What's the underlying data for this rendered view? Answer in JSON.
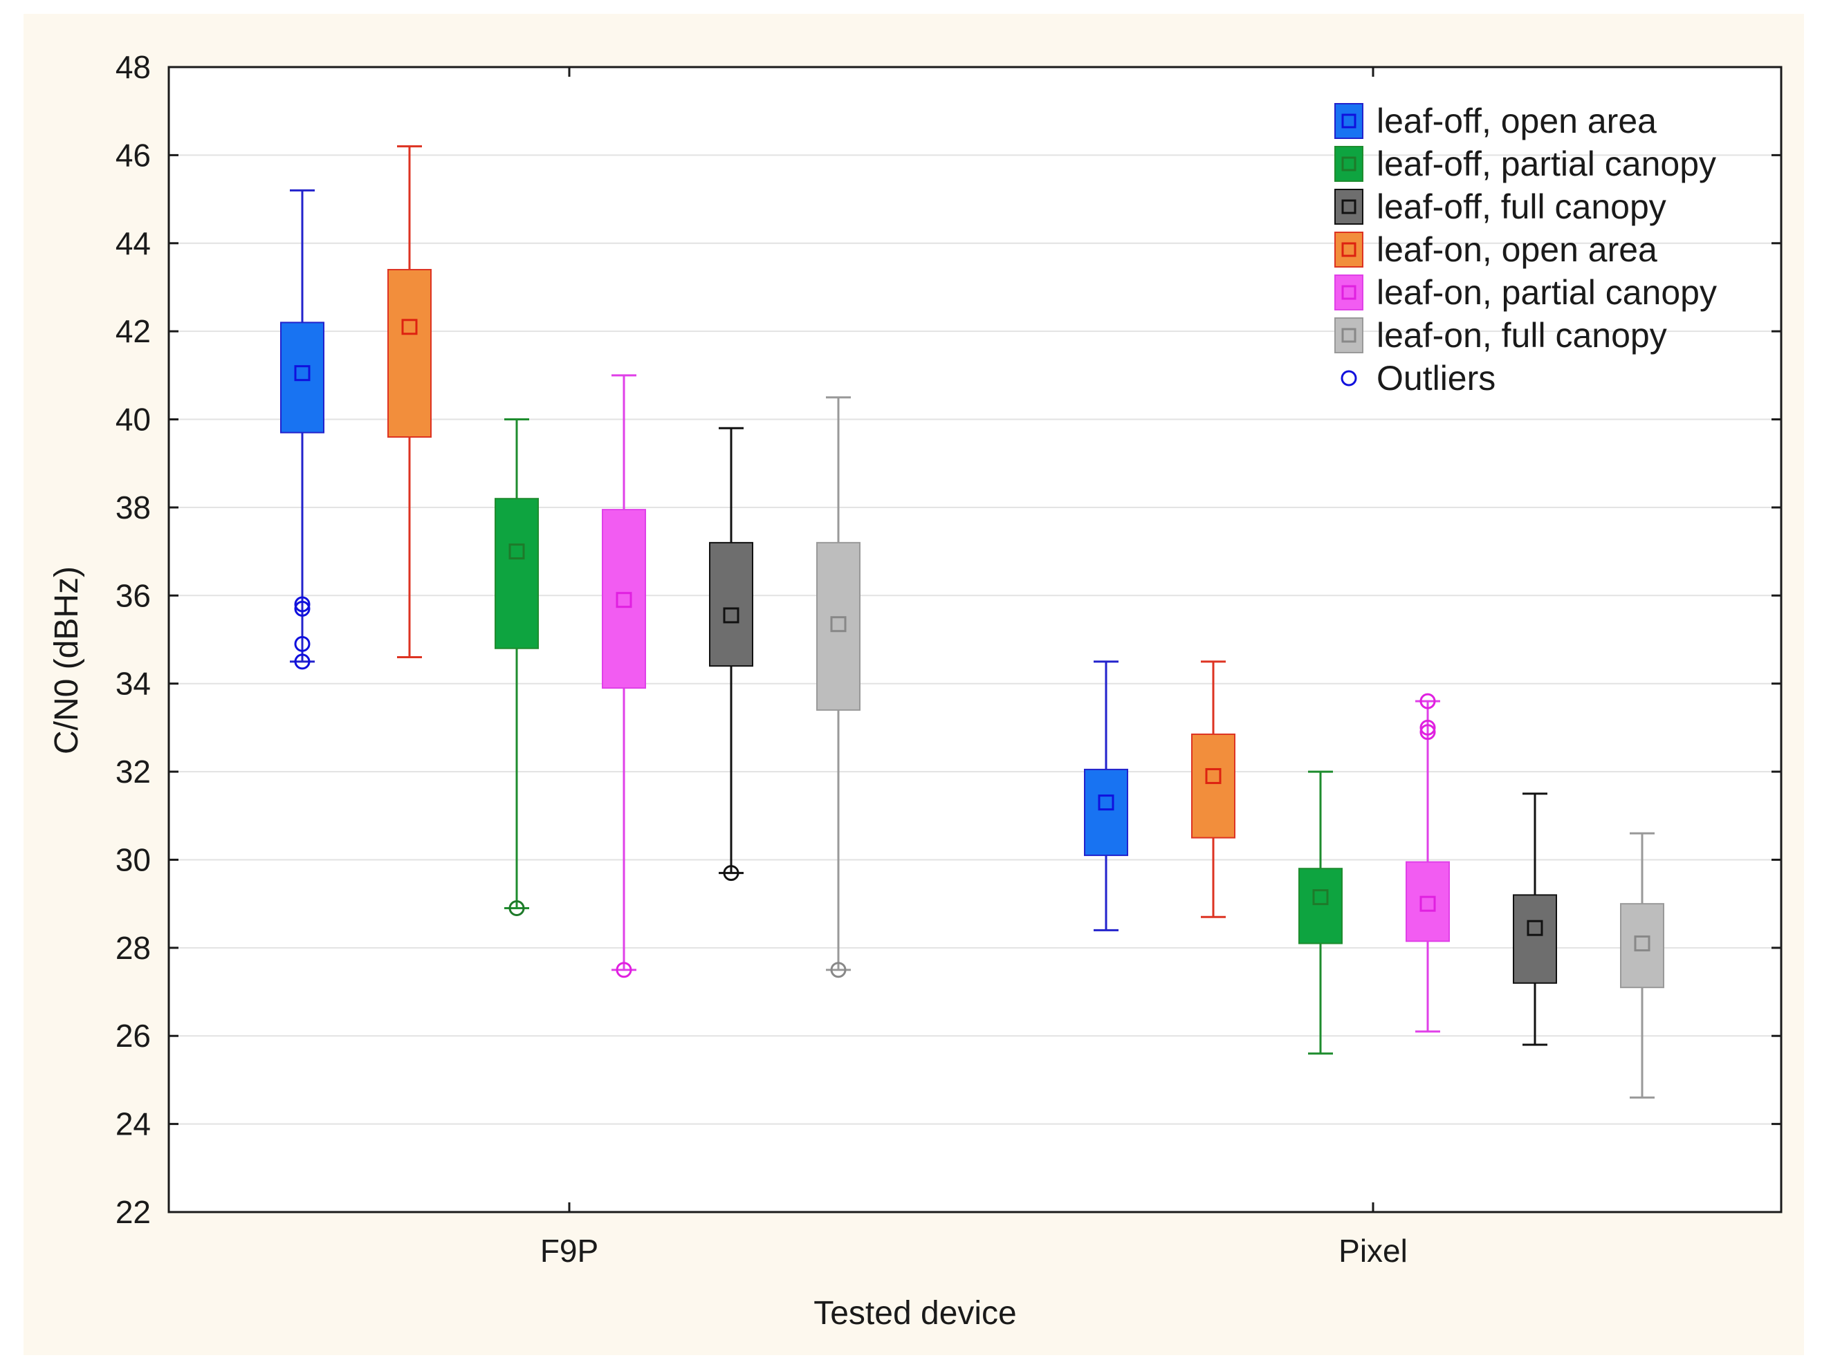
{
  "chart_data": {
    "type": "box",
    "title": "",
    "xlabel": "Tested device",
    "ylabel": "C/N0 (dBHz)",
    "ylim": [
      22,
      48
    ],
    "yticks": [
      22,
      24,
      26,
      28,
      30,
      32,
      34,
      36,
      38,
      40,
      42,
      44,
      46,
      48
    ],
    "grid": true,
    "legend_position": "top-right",
    "categories": [
      "F9P",
      "Pixel"
    ],
    "outliers_label": "Outliers",
    "series": [
      {
        "name": "leaf-off, open area",
        "fill": "#1873F2",
        "line": "#2222CC",
        "marker": "#1010DD",
        "boxes": [
          {
            "mean": 41.05,
            "q1": 39.7,
            "q3": 42.2,
            "min": 34.5,
            "max": 45.2,
            "outliers": [
              35.7,
              35.8,
              34.9,
              34.5
            ]
          },
          {
            "mean": 31.3,
            "q1": 30.1,
            "q3": 32.05,
            "min": 28.4,
            "max": 34.5,
            "outliers": []
          }
        ]
      },
      {
        "name": "leaf-off, partial canopy",
        "fill": "#0EA440",
        "line": "#1E8C2E",
        "marker": "#1E7A2A",
        "boxes": [
          {
            "mean": 37.0,
            "q1": 34.8,
            "q3": 38.2,
            "min": 28.9,
            "max": 40.0,
            "outliers": [
              28.9
            ]
          },
          {
            "mean": 29.15,
            "q1": 28.1,
            "q3": 29.8,
            "min": 25.6,
            "max": 32.0,
            "outliers": []
          }
        ]
      },
      {
        "name": "leaf-off, full canopy",
        "fill": "#6E6E6E",
        "line": "#111111",
        "marker": "#111111",
        "boxes": [
          {
            "mean": 35.55,
            "q1": 34.4,
            "q3": 37.2,
            "min": 29.7,
            "max": 39.8,
            "outliers": [
              29.7
            ]
          },
          {
            "mean": 28.45,
            "q1": 27.2,
            "q3": 29.2,
            "min": 25.8,
            "max": 31.5,
            "outliers": []
          }
        ]
      },
      {
        "name": "leaf-on, open area",
        "fill": "#F28E3C",
        "line": "#DD3322",
        "marker": "#DD2211",
        "boxes": [
          {
            "mean": 42.1,
            "q1": 39.6,
            "q3": 43.4,
            "min": 34.6,
            "max": 46.2,
            "outliers": []
          },
          {
            "mean": 31.9,
            "q1": 30.5,
            "q3": 32.85,
            "min": 28.7,
            "max": 34.5,
            "outliers": []
          }
        ]
      },
      {
        "name": "leaf-on, partial canopy",
        "fill": "#F25CF2",
        "line": "#E040E8",
        "marker": "#E020E0",
        "boxes": [
          {
            "mean": 35.9,
            "q1": 33.9,
            "q3": 37.95,
            "min": 27.5,
            "max": 41.0,
            "outliers": [
              27.5
            ]
          },
          {
            "mean": 29.0,
            "q1": 28.15,
            "q3": 29.95,
            "min": 26.1,
            "max": 33.6,
            "outliers": [
              33.6,
              33.0,
              32.9
            ]
          }
        ]
      },
      {
        "name": "leaf-on, full canopy",
        "fill": "#BDBDBD",
        "line": "#999999",
        "marker": "#888888",
        "boxes": [
          {
            "mean": 35.35,
            "q1": 33.4,
            "q3": 37.2,
            "min": 27.5,
            "max": 40.5,
            "outliers": [
              27.5
            ]
          },
          {
            "mean": 28.1,
            "q1": 27.1,
            "q3": 29.0,
            "min": 24.6,
            "max": 30.6,
            "outliers": []
          }
        ]
      }
    ]
  },
  "colors": {
    "page_background": "#FDF8EE",
    "plot_background": "#FFFFFF",
    "outlier_legend": "#1010DD"
  }
}
